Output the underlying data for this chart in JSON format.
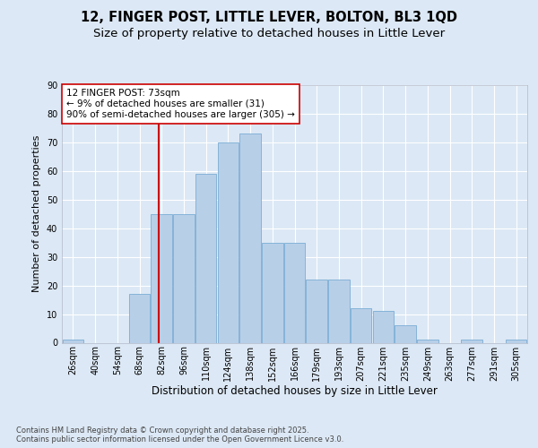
{
  "title": "12, FINGER POST, LITTLE LEVER, BOLTON, BL3 1QD",
  "subtitle": "Size of property relative to detached houses in Little Lever",
  "xlabel": "Distribution of detached houses by size in Little Lever",
  "ylabel": "Number of detached properties",
  "bar_color": "#b8cfe8",
  "bar_edge_color": "#7aadd4",
  "background_color": "#dce8f5",
  "grid_color": "#ffffff",
  "categories": [
    "26sqm",
    "40sqm",
    "54sqm",
    "68sqm",
    "82sqm",
    "96sqm",
    "110sqm",
    "124sqm",
    "138sqm",
    "152sqm",
    "166sqm",
    "179sqm",
    "193sqm",
    "207sqm",
    "221sqm",
    "235sqm",
    "249sqm",
    "263sqm",
    "277sqm",
    "291sqm",
    "305sqm"
  ],
  "values": [
    1,
    0,
    0,
    17,
    45,
    45,
    59,
    70,
    73,
    35,
    35,
    22,
    22,
    12,
    11,
    6,
    1,
    0,
    1,
    0,
    1
  ],
  "vline_x": 3.85,
  "vline_color": "#cc0000",
  "annotation_text": "12 FINGER POST: 73sqm\n← 9% of detached houses are smaller (31)\n90% of semi-detached houses are larger (305) →",
  "annotation_box_color": "#ffffff",
  "annotation_box_edge": "#cc0000",
  "ylim": [
    0,
    90
  ],
  "yticks": [
    0,
    10,
    20,
    30,
    40,
    50,
    60,
    70,
    80,
    90
  ],
  "footer": "Contains HM Land Registry data © Crown copyright and database right 2025.\nContains public sector information licensed under the Open Government Licence v3.0.",
  "title_fontsize": 10.5,
  "subtitle_fontsize": 9.5,
  "xlabel_fontsize": 8.5,
  "ylabel_fontsize": 8,
  "tick_fontsize": 7,
  "annotation_fontsize": 7.5,
  "footer_fontsize": 6
}
